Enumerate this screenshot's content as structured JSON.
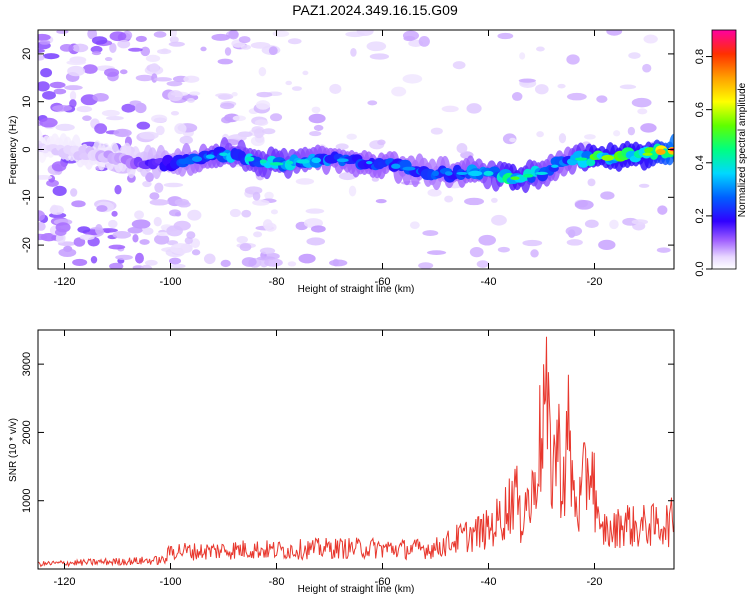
{
  "title": "PAZ1.2024.349.16.15.G09",
  "colors": {
    "snr_line": "#e8382e",
    "ridge": "#2a00ff",
    "background": "#ffffff"
  },
  "chart_data": [
    {
      "type": "heatmap",
      "title": "PAZ1.2024.349.16.15.G09",
      "xlabel": "Height of straight line (km)",
      "ylabel": "Frequency (Hz)",
      "xlim": [
        -125,
        -5
      ],
      "ylim": [
        -25,
        25
      ],
      "xticks": [
        -120,
        -100,
        -80,
        -60,
        -40,
        -20
      ],
      "yticks": [
        -20,
        -10,
        0,
        10,
        20
      ],
      "colorbar": {
        "label": "Normalized spectral amplitude",
        "range": [
          0,
          0.9
        ],
        "ticks": [
          0.0,
          0.2,
          0.4,
          0.6,
          0.8
        ],
        "colormap": "rainbow"
      },
      "ridge": {
        "x": [
          -125,
          -110,
          -100,
          -90,
          -80,
          -70,
          -60,
          -50,
          -40,
          -35,
          -30,
          -25,
          -20,
          -10,
          -5
        ],
        "frequency": [
          1,
          -2,
          -3,
          -1,
          -3,
          -2,
          -3,
          -5,
          -5,
          -6,
          -5,
          -2,
          -2,
          -1,
          0
        ],
        "peak_amplitude": [
          0.05,
          0.1,
          0.25,
          0.4,
          0.45,
          0.35,
          0.35,
          0.3,
          0.4,
          0.55,
          0.4,
          0.35,
          0.6,
          0.6,
          0.9
        ]
      }
    },
    {
      "type": "line",
      "xlabel": "Height of straight line (km)",
      "ylabel": "SNR (10 * v/v)",
      "xlim": [
        -125,
        -5
      ],
      "ylim": [
        0,
        3500
      ],
      "xticks": [
        -120,
        -100,
        -80,
        -60,
        -40,
        -20
      ],
      "yticks": [
        1000,
        2000,
        3000
      ],
      "series": [
        {
          "x": [
            -125,
            -120,
            -110,
            -101,
            -100,
            -95,
            -90,
            -85,
            -80,
            -75,
            -70,
            -65,
            -60,
            -55,
            -50,
            -47,
            -45,
            -43,
            -40,
            -38,
            -36,
            -35,
            -34,
            -33,
            -32,
            -31,
            -30,
            -29.3,
            -29,
            -28,
            -27,
            -26,
            -25.5,
            -25,
            -24,
            -23,
            -22,
            -21,
            -20.5,
            -20,
            -19.5,
            -19,
            -18,
            -17,
            -16,
            -15,
            -14,
            -12,
            -10,
            -8,
            -7,
            -6,
            -5
          ],
          "values": [
            100,
            120,
            150,
            180,
            380,
            350,
            380,
            400,
            380,
            400,
            420,
            420,
            420,
            400,
            420,
            550,
            650,
            700,
            800,
            1000,
            1300,
            1700,
            900,
            1500,
            1200,
            2200,
            2700,
            3500,
            3000,
            2000,
            2600,
            1800,
            2000,
            2800,
            1500,
            1200,
            1700,
            2100,
            2200,
            1600,
            1200,
            600,
            850,
            700,
            800,
            900,
            950,
            800,
            900,
            850,
            950,
            900,
            1000
          ]
        }
      ]
    }
  ]
}
